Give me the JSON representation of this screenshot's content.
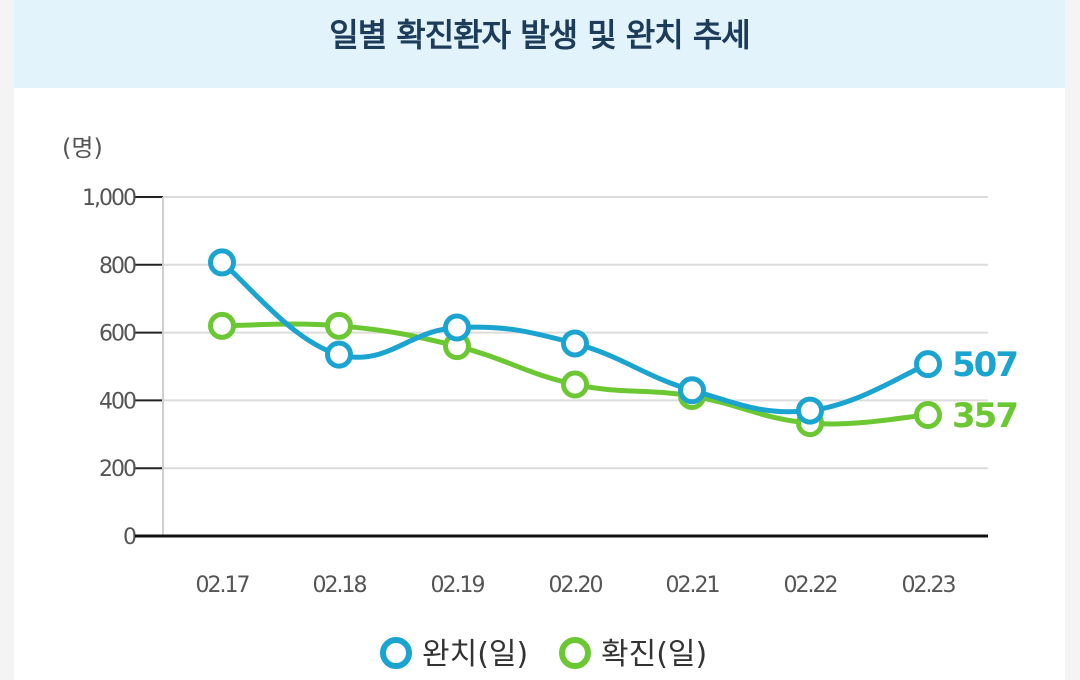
{
  "chart_data": {
    "type": "line",
    "title": "일별 확진환자 발생 및 완치 추세",
    "ylabel": "(명)",
    "xlabel": "",
    "ylim": [
      0,
      1000
    ],
    "yticks": [
      0,
      200,
      400,
      600,
      800,
      1000
    ],
    "ytick_labels": [
      "0",
      "200",
      "400",
      "600",
      "800",
      "1,000"
    ],
    "categories": [
      "02.17",
      "02.18",
      "02.19",
      "02.20",
      "02.21",
      "02.22",
      "02.23"
    ],
    "grid": true,
    "legend_position": "bottom",
    "series": [
      {
        "name": "완치(일)",
        "color": "#1ba4d0",
        "values": [
          807,
          535,
          615,
          568,
          430,
          370,
          507
        ],
        "end_label": "507"
      },
      {
        "name": "확진(일)",
        "color": "#6cc832",
        "values": [
          620,
          620,
          560,
          447,
          413,
          333,
          357
        ],
        "end_label": "357"
      }
    ]
  }
}
